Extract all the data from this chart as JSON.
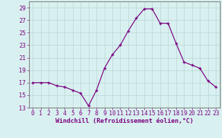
{
  "x": [
    0,
    1,
    2,
    3,
    4,
    5,
    6,
    7,
    8,
    9,
    10,
    11,
    12,
    13,
    14,
    15,
    16,
    17,
    18,
    19,
    20,
    21,
    22,
    23
  ],
  "y": [
    17,
    17,
    17,
    16.5,
    16.3,
    15.8,
    15.3,
    13.3,
    15.8,
    19.3,
    21.5,
    23.0,
    25.3,
    27.3,
    28.8,
    28.8,
    26.5,
    26.5,
    23.3,
    20.3,
    19.8,
    19.3,
    17.3,
    16.3
  ],
  "xlabel": "Windchill (Refroidissement éolien,°C)",
  "xlim": [
    -0.5,
    23.5
  ],
  "ylim": [
    13,
    30
  ],
  "yticks": [
    13,
    15,
    17,
    19,
    21,
    23,
    25,
    27,
    29
  ],
  "xticks": [
    0,
    1,
    2,
    3,
    4,
    5,
    6,
    7,
    8,
    9,
    10,
    11,
    12,
    13,
    14,
    15,
    16,
    17,
    18,
    19,
    20,
    21,
    22,
    23
  ],
  "line_color": "#7b0080",
  "bg_color": "#d8f0f0",
  "grid_color": "#b8d4d4",
  "xlabel_fontsize": 6.5,
  "tick_fontsize": 6.0
}
